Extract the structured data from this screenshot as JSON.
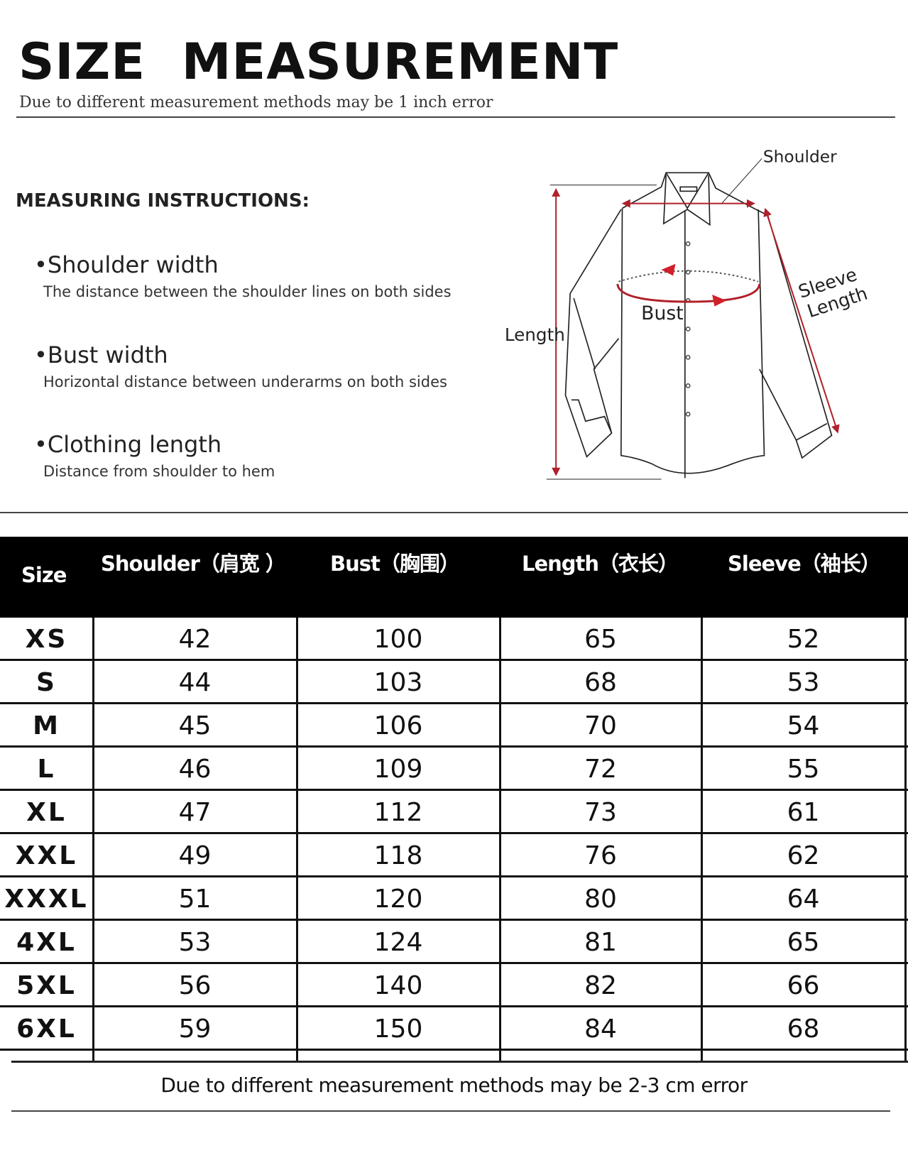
{
  "header": {
    "title": "SIZE  MEASUREMENT",
    "subtitle": "Due to different measurement methods may be 1 inch error"
  },
  "instructions": {
    "title": "MEASURING INSTRUCTIONS:",
    "items": [
      {
        "label": "•Shoulder width",
        "description": "The distance between the shoulder lines on both sides"
      },
      {
        "label": "•Bust width",
        "description": "Horizontal distance between underarms on both sides"
      },
      {
        "label": "•Clothing length",
        "description": "Distance from shoulder to hem"
      }
    ]
  },
  "diagram": {
    "shoulder": "Shoulder",
    "bust": "Bust",
    "length": "Length",
    "sleeve_line1": "Sleeve",
    "sleeve_line2": "Length",
    "accent_color": "#d0202a"
  },
  "table": {
    "columns": [
      "Size",
      "Shoulder（肩宽 ）",
      "Bust（胸围）",
      "Length（衣长）",
      "Sleeve（袖长）"
    ],
    "rows": [
      [
        "XS",
        "42",
        "100",
        "65",
        "52"
      ],
      [
        "S",
        "44",
        "103",
        "68",
        "53"
      ],
      [
        "M",
        "45",
        "106",
        "70",
        "54"
      ],
      [
        "L",
        "46",
        "109",
        "72",
        "55"
      ],
      [
        "XL",
        "47",
        "112",
        "73",
        "61"
      ],
      [
        "XXL",
        "49",
        "118",
        "76",
        "62"
      ],
      [
        "XXXL",
        "51",
        "120",
        "80",
        "64"
      ],
      [
        "4XL",
        "53",
        "124",
        "81",
        "65"
      ],
      [
        "5XL",
        "56",
        "140",
        "82",
        "66"
      ],
      [
        "6XL",
        "59",
        "150",
        "84",
        "68"
      ]
    ]
  },
  "footer": {
    "note": "Due to different measurement methods may be 2-3 cm error"
  }
}
